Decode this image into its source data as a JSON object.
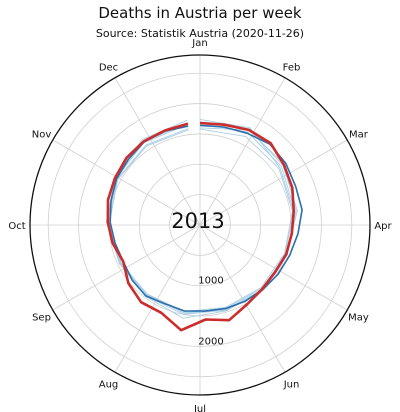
{
  "chart_data": {
    "type": "line",
    "projection": "polar",
    "title": "Deaths in Austria per week",
    "subtitle": "Source: Statistik Austria (2020-11-26)",
    "center_label": "2013",
    "month_labels": [
      "Jan",
      "Feb",
      "Mar",
      "Apr",
      "May",
      "Jun",
      "Jul",
      "Aug",
      "Sep",
      "Oct",
      "Nov",
      "Dec"
    ],
    "radial_axis": {
      "ticks": [
        1000,
        2000
      ],
      "tick_labels": [
        "1000",
        "2000"
      ],
      "range": [
        0,
        2800
      ],
      "grid": true
    },
    "angular_axis": {
      "start": "top",
      "direction": "clockwise",
      "gridlines": 12
    },
    "colors": {
      "highlight": "#cc2c2c",
      "previous": "#2b6ea9",
      "other_years": "#a9cfe6",
      "grid": "#d0d0d0",
      "outline": "#111111"
    },
    "series": [
      {
        "role": "other_years",
        "x": [
          1,
          5,
          9,
          13,
          17,
          21,
          25,
          29,
          33,
          37,
          41,
          45,
          49,
          53
        ],
        "y": [
          1670,
          1720,
          1650,
          1580,
          1520,
          1490,
          1470,
          1480,
          1440,
          1470,
          1540,
          1600,
          1640,
          1670
        ]
      },
      {
        "role": "other_years",
        "x": [
          1,
          5,
          9,
          13,
          17,
          21,
          25,
          29,
          33,
          37,
          41,
          45,
          49,
          53
        ],
        "y": [
          1600,
          1760,
          1710,
          1600,
          1500,
          1460,
          1440,
          1470,
          1450,
          1440,
          1500,
          1560,
          1590,
          1600
        ]
      },
      {
        "role": "other_years",
        "x": [
          1,
          5,
          9,
          13,
          17,
          21,
          25,
          29,
          33,
          37,
          41,
          45,
          49,
          53
        ],
        "y": [
          1740,
          1800,
          1620,
          1560,
          1480,
          1480,
          1460,
          1500,
          1470,
          1460,
          1520,
          1600,
          1700,
          1740
        ]
      },
      {
        "role": "other_years",
        "x": [
          1,
          5,
          9,
          13,
          17,
          21,
          25,
          29,
          33,
          37,
          41,
          45,
          49,
          53
        ],
        "y": [
          1580,
          1640,
          1600,
          1540,
          1470,
          1440,
          1420,
          1450,
          1430,
          1450,
          1490,
          1550,
          1570,
          1580
        ]
      },
      {
        "role": "other_years",
        "x": [
          1,
          5,
          9,
          13,
          17,
          21,
          25,
          29,
          33,
          37,
          41,
          45,
          49,
          53
        ],
        "y": [
          1700,
          1780,
          1680,
          1620,
          1510,
          1500,
          1480,
          1560,
          1480,
          1470,
          1530,
          1580,
          1650,
          1700
        ]
      },
      {
        "role": "previous",
        "x": [
          1,
          3,
          5,
          7,
          9,
          11,
          13,
          15,
          17,
          19,
          21,
          23,
          25,
          27,
          29,
          31,
          33,
          35,
          37,
          39,
          41,
          43,
          45,
          47,
          49,
          51,
          53
        ],
        "y": [
          1640,
          1660,
          1700,
          1760,
          1740,
          1700,
          1700,
          1620,
          1560,
          1520,
          1480,
          1460,
          1440,
          1420,
          1440,
          1420,
          1470,
          1440,
          1400,
          1430,
          1480,
          1520,
          1570,
          1600,
          1650,
          1650,
          1640
        ]
      },
      {
        "role": "highlight",
        "x": [
          1,
          3,
          5,
          7,
          9,
          11,
          13,
          15,
          17,
          19,
          21,
          23,
          25,
          27,
          29,
          31,
          33,
          35,
          37,
          39,
          41,
          43,
          45,
          47,
          49,
          51,
          53
        ],
        "y": [
          1680,
          1700,
          1760,
          1780,
          1700,
          1640,
          1560,
          1520,
          1500,
          1460,
          1470,
          1520,
          1640,
          1560,
          1760,
          1580,
          1600,
          1520,
          1400,
          1470,
          1520,
          1570,
          1600,
          1640,
          1660,
          1660,
          1680
        ]
      }
    ]
  }
}
